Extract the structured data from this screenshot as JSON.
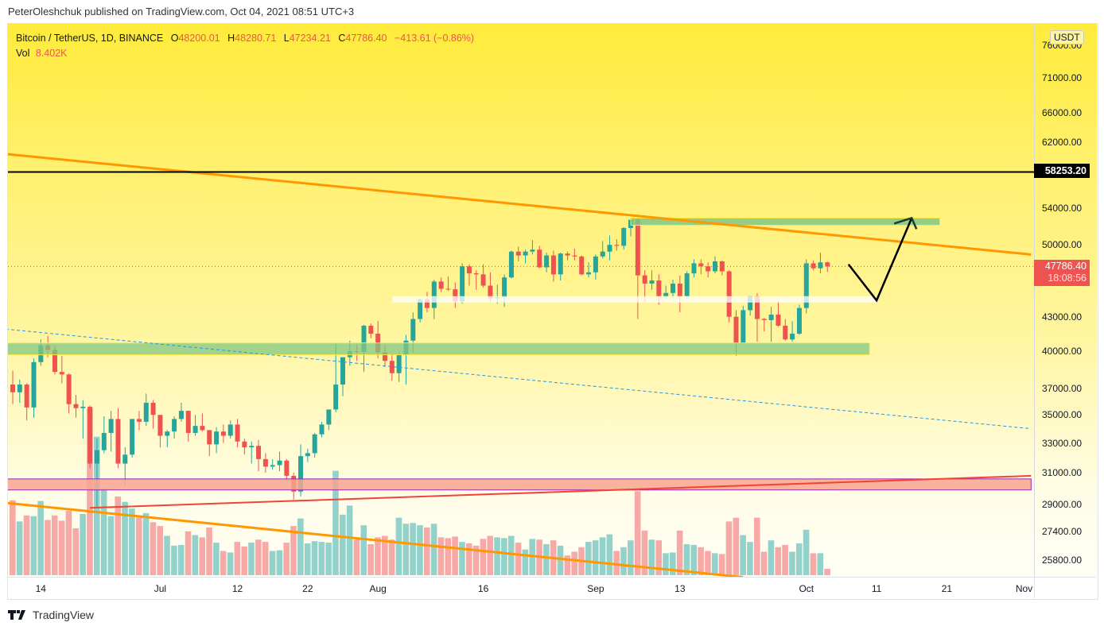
{
  "attribution": "PeterOleshchuk published on TradingView.com, Oct 04, 2021 08:51 UTC+3",
  "legend": {
    "symbol": "Bitcoin / TetherUS, 1D, BINANCE",
    "o_label": "O",
    "o": "48200.01",
    "h_label": "H",
    "h": "48280.71",
    "l_label": "L",
    "l": "47234.21",
    "c_label": "C",
    "c": "47786.40",
    "change": "−413.61 (−0.86%)",
    "vol_label": "Vol",
    "vol": "8.402K"
  },
  "currency": "USDT",
  "level_label": "58253.20",
  "last_price_label": "47786.40",
  "countdown": "18:08:56",
  "brand": "TradingView",
  "colors": {
    "up": "#26a69a",
    "down": "#ef5350",
    "vol_up": "#93d2cb",
    "vol_down": "#f7a9a7",
    "trendline": "#ff9800",
    "level": "#000000",
    "dashed": "#2196f3",
    "support_zone": "#81c784",
    "resistance_zone": "#f8a48e"
  },
  "chart_data": {
    "type": "candlestick",
    "title": "",
    "scale": "log",
    "interval": "1D",
    "start_date": "2021-06-10",
    "ylim": [
      25200,
      78000
    ],
    "y_ticks": [
      "76000.00",
      "71000.00",
      "66000.00",
      "62000.00",
      "54000.00",
      "50000.00",
      "43000.00",
      "40000.00",
      "37000.00",
      "35000.00",
      "33000.00",
      "31000.00",
      "29000.00",
      "27400.00",
      "25800.00"
    ],
    "x_ticks": [
      {
        "label": "14",
        "date": "2021-06-14"
      },
      {
        "label": "Jul",
        "date": "2021-07-01"
      },
      {
        "label": "12",
        "date": "2021-07-12"
      },
      {
        "label": "22",
        "date": "2021-07-22"
      },
      {
        "label": "Aug",
        "date": "2021-08-01"
      },
      {
        "label": "16",
        "date": "2021-08-16"
      },
      {
        "label": "Sep",
        "date": "2021-09-01"
      },
      {
        "label": "13",
        "date": "2021-09-13"
      },
      {
        "label": "Oct",
        "date": "2021-10-01"
      },
      {
        "label": "11",
        "date": "2021-10-11"
      },
      {
        "label": "21",
        "date": "2021-10-21"
      },
      {
        "label": "Nov",
        "date": "2021-11-01"
      }
    ],
    "ohlc": [
      [
        37300,
        38400,
        35800,
        36700
      ],
      [
        36700,
        37700,
        35900,
        37300
      ],
      [
        37300,
        37400,
        34600,
        35550
      ],
      [
        35550,
        39400,
        34800,
        39100
      ],
      [
        39100,
        41000,
        38800,
        40500
      ],
      [
        40500,
        41300,
        39500,
        40100
      ],
      [
        40100,
        40500,
        38100,
        38300
      ],
      [
        38300,
        39600,
        37400,
        38100
      ],
      [
        38100,
        38200,
        35100,
        35800
      ],
      [
        35800,
        36500,
        34800,
        35500
      ],
      [
        35500,
        36100,
        33300,
        35600
      ],
      [
        35600,
        35700,
        31300,
        31600
      ],
      [
        31600,
        33300,
        28800,
        32500
      ],
      [
        32500,
        34900,
        32300,
        33700
      ],
      [
        33700,
        35300,
        32400,
        34700
      ],
      [
        34700,
        35500,
        31300,
        31600
      ],
      [
        31600,
        32700,
        30200,
        32200
      ],
      [
        32200,
        34700,
        32000,
        34700
      ],
      [
        34700,
        35300,
        33900,
        34500
      ],
      [
        34500,
        36600,
        34200,
        35900
      ],
      [
        35900,
        36100,
        34000,
        35000
      ],
      [
        35000,
        35000,
        32700,
        33500
      ],
      [
        33500,
        33900,
        32700,
        33800
      ],
      [
        33800,
        34900,
        33300,
        34700
      ],
      [
        34700,
        35900,
        34500,
        35300
      ],
      [
        35300,
        35300,
        33100,
        33700
      ],
      [
        33700,
        35000,
        33500,
        34200
      ],
      [
        34200,
        35100,
        33800,
        33900
      ],
      [
        33900,
        33900,
        32100,
        32900
      ],
      [
        32900,
        34100,
        32300,
        33800
      ],
      [
        33800,
        34300,
        33000,
        33500
      ],
      [
        33500,
        34600,
        33300,
        34300
      ],
      [
        34300,
        34700,
        32700,
        33100
      ],
      [
        33100,
        33300,
        32200,
        32700
      ],
      [
        32700,
        33100,
        31600,
        32800
      ],
      [
        32800,
        33200,
        31100,
        31900
      ],
      [
        31900,
        32300,
        31000,
        31400
      ],
      [
        31400,
        31900,
        31200,
        31500
      ],
      [
        31500,
        32400,
        31100,
        31800
      ],
      [
        31800,
        31900,
        30500,
        30800
      ],
      [
        30800,
        31000,
        29300,
        29800
      ],
      [
        29800,
        32900,
        29500,
        32100
      ],
      [
        32100,
        32600,
        31700,
        32300
      ],
      [
        32300,
        33700,
        32000,
        33600
      ],
      [
        33600,
        34500,
        33400,
        34300
      ],
      [
        34300,
        35400,
        33900,
        35400
      ],
      [
        35400,
        40600,
        35200,
        37300
      ],
      [
        37300,
        39500,
        36400,
        39500
      ],
      [
        39500,
        40900,
        38800,
        40000
      ],
      [
        40000,
        40600,
        39200,
        39950
      ],
      [
        39950,
        42300,
        38300,
        42200
      ],
      [
        42200,
        42400,
        41100,
        41500
      ],
      [
        41500,
        42600,
        39400,
        39900
      ],
      [
        39900,
        40500,
        38700,
        39200
      ],
      [
        39200,
        39800,
        37600,
        38200
      ],
      [
        38200,
        39900,
        37500,
        39700
      ],
      [
        39700,
        41400,
        37300,
        40900
      ],
      [
        40900,
        43400,
        39900,
        42800
      ],
      [
        42800,
        44700,
        42500,
        44600
      ],
      [
        44600,
        45300,
        43400,
        43800
      ],
      [
        43800,
        46500,
        42800,
        46300
      ],
      [
        46300,
        46700,
        45300,
        45600
      ],
      [
        45600,
        46800,
        45400,
        45550
      ],
      [
        45550,
        46200,
        43800,
        44400
      ],
      [
        44400,
        48100,
        44200,
        47800
      ],
      [
        47800,
        48000,
        45900,
        47100
      ],
      [
        47100,
        47400,
        45500,
        47000
      ],
      [
        47000,
        48000,
        45700,
        45900
      ],
      [
        45900,
        47200,
        44400,
        44700
      ],
      [
        44700,
        46000,
        44200,
        44800
      ],
      [
        44800,
        47000,
        43900,
        46700
      ],
      [
        46700,
        49400,
        46600,
        49300
      ],
      [
        49300,
        49800,
        48300,
        48900
      ],
      [
        48900,
        49500,
        48100,
        49300
      ],
      [
        49300,
        50500,
        49000,
        49500
      ],
      [
        49500,
        49900,
        47600,
        47700
      ],
      [
        47700,
        49200,
        47200,
        48900
      ],
      [
        48900,
        49400,
        46300,
        47000
      ],
      [
        47000,
        49200,
        46400,
        49100
      ],
      [
        49100,
        49300,
        48400,
        48900
      ],
      [
        48900,
        49600,
        48400,
        48800
      ],
      [
        48800,
        48900,
        46900,
        47000
      ],
      [
        47000,
        48200,
        46700,
        47200
      ],
      [
        47200,
        49000,
        46500,
        48800
      ],
      [
        48800,
        50400,
        48600,
        49300
      ],
      [
        49300,
        51000,
        48400,
        50000
      ],
      [
        50000,
        50600,
        49400,
        49900
      ],
      [
        49900,
        51900,
        49500,
        51800
      ],
      [
        51800,
        52900,
        50900,
        52700
      ],
      [
        52700,
        52900,
        42800,
        46900
      ],
      [
        46900,
        47400,
        44400,
        46100
      ],
      [
        46100,
        47400,
        45500,
        46400
      ],
      [
        46400,
        47000,
        44100,
        44900
      ],
      [
        44900,
        45900,
        44700,
        45200
      ],
      [
        45200,
        46500,
        44700,
        46100
      ],
      [
        46100,
        46900,
        43400,
        44900
      ],
      [
        44900,
        47300,
        44600,
        47100
      ],
      [
        47100,
        48500,
        46700,
        48100
      ],
      [
        48100,
        48500,
        47000,
        47800
      ],
      [
        47800,
        48200,
        46700,
        47300
      ],
      [
        47300,
        48800,
        47100,
        48300
      ],
      [
        48300,
        48400,
        46900,
        47300
      ],
      [
        47300,
        47400,
        42500,
        43000
      ],
      [
        43000,
        43600,
        39600,
        40700
      ],
      [
        40700,
        44000,
        40600,
        43600
      ],
      [
        43600,
        44900,
        43100,
        44900
      ],
      [
        44900,
        45200,
        40800,
        42800
      ],
      [
        42800,
        42900,
        41700,
        42700
      ],
      [
        42700,
        43900,
        40800,
        43200
      ],
      [
        43200,
        44400,
        42100,
        42200
      ],
      [
        42200,
        42800,
        40900,
        41000
      ],
      [
        41000,
        42600,
        40800,
        41500
      ],
      [
        41500,
        44100,
        41400,
        43800
      ],
      [
        43800,
        48500,
        43300,
        48100
      ],
      [
        48100,
        48400,
        47400,
        47600
      ],
      [
        47600,
        49200,
        47100,
        48200
      ],
      [
        48200.01,
        48280.71,
        47234.21,
        47786.4
      ]
    ],
    "volume": [
      99000,
      71000,
      79000,
      78000,
      98000,
      73000,
      79000,
      72000,
      85000,
      62000,
      81000,
      220000,
      183000,
      114000,
      78000,
      104000,
      97000,
      88000,
      76000,
      82000,
      70000,
      65000,
      52000,
      39000,
      40000,
      58000,
      53000,
      50000,
      63000,
      43000,
      32000,
      30000,
      44000,
      38000,
      43000,
      47000,
      44000,
      32000,
      33000,
      43000,
      65000,
      75000,
      42000,
      45000,
      44000,
      43000,
      138000,
      80000,
      92000,
      47000,
      66000,
      41000,
      50000,
      52000,
      47000,
      76000,
      68000,
      69000,
      66000,
      63000,
      68000,
      50000,
      49000,
      51000,
      44000,
      42000,
      39000,
      48000,
      52000,
      50000,
      49000,
      52000,
      43000,
      34000,
      48000,
      47000,
      41000,
      46000,
      39000,
      26000,
      31000,
      37000,
      44000,
      46000,
      50000,
      54000,
      32000,
      37000,
      46000,
      111000,
      59000,
      47000,
      46000,
      29000,
      30000,
      59000,
      41000,
      40000,
      37000,
      32000,
      29000,
      28000,
      71000,
      76000,
      53000,
      44000,
      76000,
      31000,
      46000,
      37000,
      40000,
      31000,
      42000,
      60000,
      29000,
      29000,
      8402
    ],
    "drawings": {
      "horizontal_level": 58253.2,
      "last_price": 47786.4,
      "upper_trendline": [
        [
          "2021-06-09",
          60500
        ],
        [
          "2021-11-02",
          49000
        ]
      ],
      "lower_trendline": [
        [
          "2021-06-09",
          29100
        ],
        [
          "2021-09-22",
          24900
        ]
      ],
      "rising_red_line": [
        [
          "2021-06-21",
          28800
        ],
        [
          "2021-11-02",
          30800
        ]
      ],
      "dashed_line": [
        [
          "2021-06-09",
          41900
        ],
        [
          "2021-11-02",
          34000
        ]
      ],
      "resistance_zone_green": {
        "from": "2021-09-06",
        "to": "2021-10-20",
        "top": 52900,
        "bottom": 52100
      },
      "white_zone": {
        "from": "2021-08-03",
        "to": "2021-10-11",
        "top": 44900,
        "bottom": 44300
      },
      "support_zone_green": {
        "from": "2021-06-09",
        "to": "2021-10-10",
        "top": 40700,
        "bottom": 39700
      },
      "red_zone": {
        "from": "2021-06-09",
        "to": "2021-11-02",
        "top": 30600,
        "bottom": 29900
      },
      "projection_path": [
        [
          "2021-10-07",
          48000
        ],
        [
          "2021-10-11",
          44500
        ],
        [
          "2021-10-16",
          52900
        ]
      ]
    }
  }
}
